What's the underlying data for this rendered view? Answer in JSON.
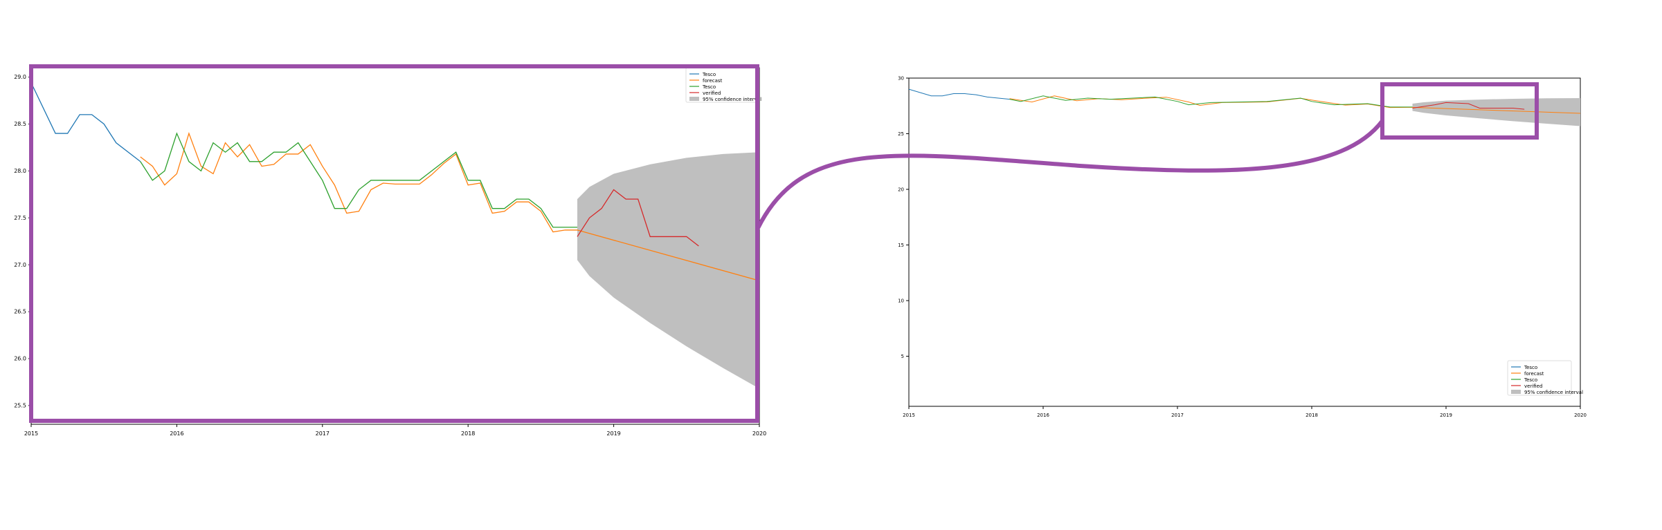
{
  "chart_data": [
    {
      "type": "line",
      "title": "",
      "xlabel": "",
      "ylabel": "",
      "xlim": [
        "2015-01",
        "2020-01"
      ],
      "ylim": [
        25.3,
        29.1
      ],
      "x_ticks": [
        "2015",
        "2016",
        "2017",
        "2018",
        "2019",
        "2020"
      ],
      "y_ticks": [
        "29.0",
        "28.5",
        "28.0",
        "27.5",
        "27.0",
        "26.5",
        "26.0",
        "25.5"
      ],
      "legend": {
        "position": "top-right",
        "entries": [
          "Tesco",
          "forecast",
          "Tesco",
          "verified",
          "95% confidence interval"
        ]
      },
      "series": [
        {
          "name": "Tesco",
          "color": "#1f77b4",
          "points": [
            [
              "2015-01",
              28.94
            ],
            [
              "2015-03",
              28.4
            ],
            [
              "2015-04",
              28.4
            ],
            [
              "2015-05",
              28.6
            ],
            [
              "2015-06",
              28.6
            ],
            [
              "2015-07",
              28.5
            ],
            [
              "2015-08",
              28.3
            ],
            [
              "2015-10",
              28.1
            ]
          ]
        },
        {
          "name": "forecast",
          "color": "#ff7f0e",
          "points": [
            [
              "2015-10",
              28.15
            ],
            [
              "2015-11",
              28.05
            ],
            [
              "2015-12",
              27.85
            ],
            [
              "2016-01",
              27.97
            ],
            [
              "2016-02",
              28.4
            ],
            [
              "2016-03",
              28.05
            ],
            [
              "2016-04",
              27.97
            ],
            [
              "2016-05",
              28.3
            ],
            [
              "2016-06",
              28.15
            ],
            [
              "2016-07",
              28.28
            ],
            [
              "2016-08",
              28.05
            ],
            [
              "2016-09",
              28.07
            ],
            [
              "2016-10",
              28.18
            ],
            [
              "2016-11",
              28.18
            ],
            [
              "2016-12",
              28.28
            ],
            [
              "2017-01",
              28.05
            ],
            [
              "2017-02",
              27.85
            ],
            [
              "2017-03",
              27.55
            ],
            [
              "2017-04",
              27.57
            ],
            [
              "2017-05",
              27.8
            ],
            [
              "2017-06",
              27.87
            ],
            [
              "2017-07",
              27.86
            ],
            [
              "2017-08",
              27.86
            ],
            [
              "2017-09",
              27.86
            ],
            [
              "2017-10",
              27.96
            ],
            [
              "2017-11",
              28.08
            ],
            [
              "2017-12",
              28.18
            ],
            [
              "2018-01",
              27.85
            ],
            [
              "2018-02",
              27.87
            ],
            [
              "2018-03",
              27.55
            ],
            [
              "2018-04",
              27.57
            ],
            [
              "2018-05",
              27.67
            ],
            [
              "2018-06",
              27.67
            ],
            [
              "2018-07",
              27.57
            ],
            [
              "2018-08",
              27.35
            ],
            [
              "2018-09",
              27.37
            ],
            [
              "2018-10",
              27.37
            ],
            [
              "2020-01",
              26.83
            ]
          ]
        },
        {
          "name": "Tesco",
          "color": "#2ca02c",
          "points": [
            [
              "2015-10",
              28.1
            ],
            [
              "2015-11",
              27.9
            ],
            [
              "2015-12",
              28.0
            ],
            [
              "2016-01",
              28.4
            ],
            [
              "2016-02",
              28.1
            ],
            [
              "2016-03",
              28.0
            ],
            [
              "2016-04",
              28.3
            ],
            [
              "2016-05",
              28.2
            ],
            [
              "2016-06",
              28.3
            ],
            [
              "2016-07",
              28.1
            ],
            [
              "2016-08",
              28.1
            ],
            [
              "2016-09",
              28.2
            ],
            [
              "2016-10",
              28.2
            ],
            [
              "2016-11",
              28.3
            ],
            [
              "2016-12",
              28.1
            ],
            [
              "2017-01",
              27.9
            ],
            [
              "2017-02",
              27.6
            ],
            [
              "2017-03",
              27.6
            ],
            [
              "2017-04",
              27.8
            ],
            [
              "2017-05",
              27.9
            ],
            [
              "2017-06",
              27.9
            ],
            [
              "2017-07",
              27.9
            ],
            [
              "2017-08",
              27.9
            ],
            [
              "2017-09",
              27.9
            ],
            [
              "2017-10",
              28.0
            ],
            [
              "2017-11",
              28.1
            ],
            [
              "2017-12",
              28.2
            ],
            [
              "2018-01",
              27.9
            ],
            [
              "2018-02",
              27.9
            ],
            [
              "2018-03",
              27.6
            ],
            [
              "2018-04",
              27.6
            ],
            [
              "2018-05",
              27.7
            ],
            [
              "2018-06",
              27.7
            ],
            [
              "2018-07",
              27.6
            ],
            [
              "2018-08",
              27.4
            ],
            [
              "2018-09",
              27.4
            ],
            [
              "2018-10",
              27.4
            ]
          ]
        },
        {
          "name": "verified",
          "color": "#d62728",
          "points": [
            [
              "2018-10",
              27.3
            ],
            [
              "2018-11",
              27.5
            ],
            [
              "2018-12",
              27.6
            ],
            [
              "2019-01",
              27.8
            ],
            [
              "2019-02",
              27.7
            ],
            [
              "2019-03",
              27.7
            ],
            [
              "2019-04",
              27.3
            ],
            [
              "2019-05",
              27.3
            ],
            [
              "2019-06",
              27.3
            ],
            [
              "2019-07",
              27.3
            ],
            [
              "2019-08",
              27.2
            ]
          ]
        }
      ],
      "confidence_band": {
        "name": "95% confidence interval",
        "color": "#bfbfbf",
        "upper": [
          [
            "2018-10",
            27.7
          ],
          [
            "2018-11",
            27.83
          ],
          [
            "2019-01",
            27.97
          ],
          [
            "2019-04",
            28.07
          ],
          [
            "2019-07",
            28.14
          ],
          [
            "2019-10",
            28.18
          ],
          [
            "2020-01",
            28.2
          ]
        ],
        "lower": [
          [
            "2018-10",
            27.05
          ],
          [
            "2018-11",
            26.88
          ],
          [
            "2019-01",
            26.65
          ],
          [
            "2019-04",
            26.38
          ],
          [
            "2019-07",
            26.13
          ],
          [
            "2019-10",
            25.9
          ],
          [
            "2020-01",
            25.68
          ]
        ]
      }
    },
    {
      "type": "line",
      "title": "",
      "xlabel": "",
      "ylabel": "",
      "xlim": [
        "2015-01",
        "2020-01"
      ],
      "ylim": [
        0.5,
        30
      ],
      "x_ticks": [
        "2015",
        "2016",
        "2017",
        "2018",
        "2019",
        "2020"
      ],
      "y_ticks": [
        "30",
        "25",
        "20",
        "15",
        "10",
        "5"
      ],
      "legend": {
        "position": "bottom-right",
        "entries": [
          "Tesco",
          "forecast",
          "Tesco",
          "verified",
          "95% confidence interval"
        ]
      },
      "series": [
        {
          "name": "Tesco",
          "color": "#1f77b4",
          "points": [
            [
              "2015-01",
              29.0
            ],
            [
              "2015-03",
              28.4
            ],
            [
              "2015-04",
              28.4
            ],
            [
              "2015-05",
              28.6
            ],
            [
              "2015-06",
              28.6
            ],
            [
              "2015-07",
              28.5
            ],
            [
              "2015-08",
              28.3
            ],
            [
              "2015-10",
              28.1
            ]
          ]
        },
        {
          "name": "forecast",
          "color": "#ff7f0e",
          "points": [
            [
              "2015-10",
              28.15
            ],
            [
              "2015-12",
              27.85
            ],
            [
              "2016-02",
              28.4
            ],
            [
              "2016-04",
              27.97
            ],
            [
              "2016-06",
              28.15
            ],
            [
              "2016-08",
              28.05
            ],
            [
              "2016-10",
              28.18
            ],
            [
              "2016-12",
              28.28
            ],
            [
              "2017-02",
              27.85
            ],
            [
              "2017-03",
              27.55
            ],
            [
              "2017-05",
              27.8
            ],
            [
              "2017-09",
              27.86
            ],
            [
              "2017-12",
              28.18
            ],
            [
              "2018-02",
              27.87
            ],
            [
              "2018-04",
              27.57
            ],
            [
              "2018-06",
              27.67
            ],
            [
              "2018-08",
              27.35
            ],
            [
              "2018-10",
              27.37
            ],
            [
              "2020-01",
              26.83
            ]
          ]
        },
        {
          "name": "Tesco",
          "color": "#2ca02c",
          "points": [
            [
              "2015-10",
              28.1
            ],
            [
              "2015-11",
              27.9
            ],
            [
              "2016-01",
              28.4
            ],
            [
              "2016-03",
              28.0
            ],
            [
              "2016-05",
              28.2
            ],
            [
              "2016-07",
              28.1
            ],
            [
              "2016-09",
              28.2
            ],
            [
              "2016-11",
              28.3
            ],
            [
              "2017-01",
              27.9
            ],
            [
              "2017-02",
              27.6
            ],
            [
              "2017-04",
              27.8
            ],
            [
              "2017-09",
              27.9
            ],
            [
              "2017-12",
              28.2
            ],
            [
              "2018-01",
              27.9
            ],
            [
              "2018-03",
              27.6
            ],
            [
              "2018-06",
              27.7
            ],
            [
              "2018-08",
              27.4
            ],
            [
              "2018-10",
              27.4
            ]
          ]
        },
        {
          "name": "verified",
          "color": "#d62728",
          "points": [
            [
              "2018-10",
              27.3
            ],
            [
              "2018-12",
              27.6
            ],
            [
              "2019-01",
              27.8
            ],
            [
              "2019-03",
              27.7
            ],
            [
              "2019-04",
              27.3
            ],
            [
              "2019-07",
              27.3
            ],
            [
              "2019-08",
              27.2
            ]
          ]
        }
      ],
      "confidence_band": {
        "name": "95% confidence interval",
        "color": "#bfbfbf",
        "upper": [
          [
            "2018-10",
            27.7
          ],
          [
            "2018-11",
            27.83
          ],
          [
            "2019-01",
            27.97
          ],
          [
            "2019-04",
            28.07
          ],
          [
            "2019-07",
            28.14
          ],
          [
            "2019-10",
            28.18
          ],
          [
            "2020-01",
            28.2
          ]
        ],
        "lower": [
          [
            "2018-10",
            27.05
          ],
          [
            "2018-11",
            26.88
          ],
          [
            "2019-01",
            26.65
          ],
          [
            "2019-04",
            26.38
          ],
          [
            "2019-07",
            26.13
          ],
          [
            "2019-10",
            25.9
          ],
          [
            "2020-01",
            25.68
          ]
        ]
      }
    }
  ],
  "highlight": {
    "color": "#9b4ea8",
    "zoom_window": {
      "x_range": [
        "2018-07",
        "2019-10"
      ],
      "y_range": [
        25.0,
        29.5
      ]
    }
  }
}
